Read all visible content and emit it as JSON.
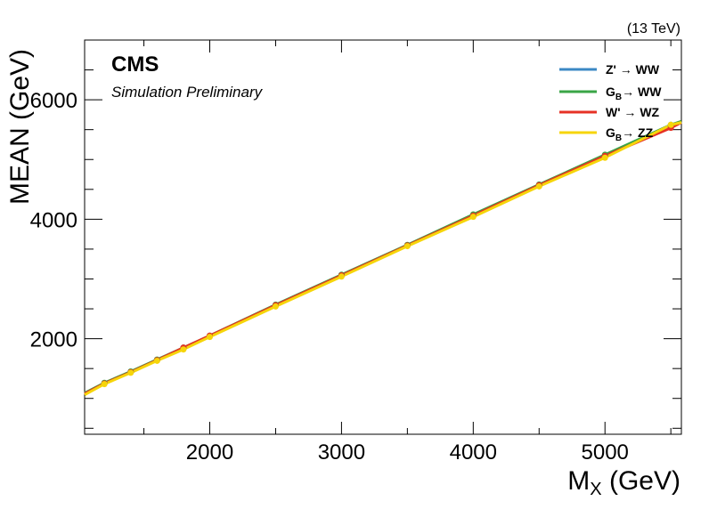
{
  "chart_data": {
    "type": "line",
    "title": "",
    "energy_label": "(13 TeV)",
    "experiment_label": "CMS",
    "experiment_sublabel": "Simulation Preliminary",
    "xlabel_main": "M",
    "xlabel_sub": "X",
    "xlabel_unit": " (GeV)",
    "ylabel": "MEAN (GeV)",
    "xlim": [
      1050,
      5580
    ],
    "ylim": [
      400,
      7000
    ],
    "x_ticks": [
      2000,
      3000,
      4000,
      5000
    ],
    "y_ticks": [
      2000,
      4000,
      6000
    ],
    "legend_position": "top-right",
    "series": [
      {
        "name_main": "Z'",
        "name_sub": "",
        "name_rest": " → WW",
        "color": "#3b88c4",
        "x": [
          1050,
          1200,
          1400,
          1600,
          1800,
          2000,
          2500,
          3000,
          3500,
          4000,
          4500,
          5000,
          5500,
          5580
        ],
        "y": [
          1080,
          1250,
          1440,
          1640,
          1840,
          2040,
          2560,
          3060,
          3560,
          4060,
          4560,
          5060,
          5560,
          5630
        ]
      },
      {
        "name_main": "G",
        "name_sub": "B",
        "name_rest": "→ WW",
        "color": "#3aa546",
        "x": [
          1050,
          1200,
          1400,
          1600,
          1800,
          2000,
          2500,
          3000,
          3500,
          4000,
          4500,
          5000,
          5500,
          5580
        ],
        "y": [
          1090,
          1260,
          1450,
          1650,
          1850,
          2050,
          2570,
          3070,
          3570,
          4080,
          4580,
          5080,
          5580,
          5640
        ]
      },
      {
        "name_main": "W'",
        "name_sub": "",
        "name_rest": " → WZ",
        "color": "#e63125",
        "x": [
          1050,
          1200,
          1400,
          1600,
          1800,
          2000,
          2500,
          3000,
          3500,
          4000,
          4500,
          5000,
          5500,
          5580
        ],
        "y": [
          1080,
          1250,
          1440,
          1640,
          1850,
          2050,
          2560,
          3060,
          3560,
          4060,
          4570,
          5060,
          5530,
          5620
        ]
      },
      {
        "name_main": "G",
        "name_sub": "B",
        "name_rest": "→ ZZ",
        "color": "#f6d50a",
        "x": [
          1050,
          1200,
          1400,
          1600,
          1800,
          2000,
          2500,
          3000,
          3500,
          4000,
          4500,
          5000,
          5500,
          5580
        ],
        "y": [
          1060,
          1240,
          1430,
          1630,
          1820,
          2030,
          2540,
          3040,
          3550,
          4040,
          4550,
          5030,
          5580,
          5620
        ]
      }
    ]
  }
}
